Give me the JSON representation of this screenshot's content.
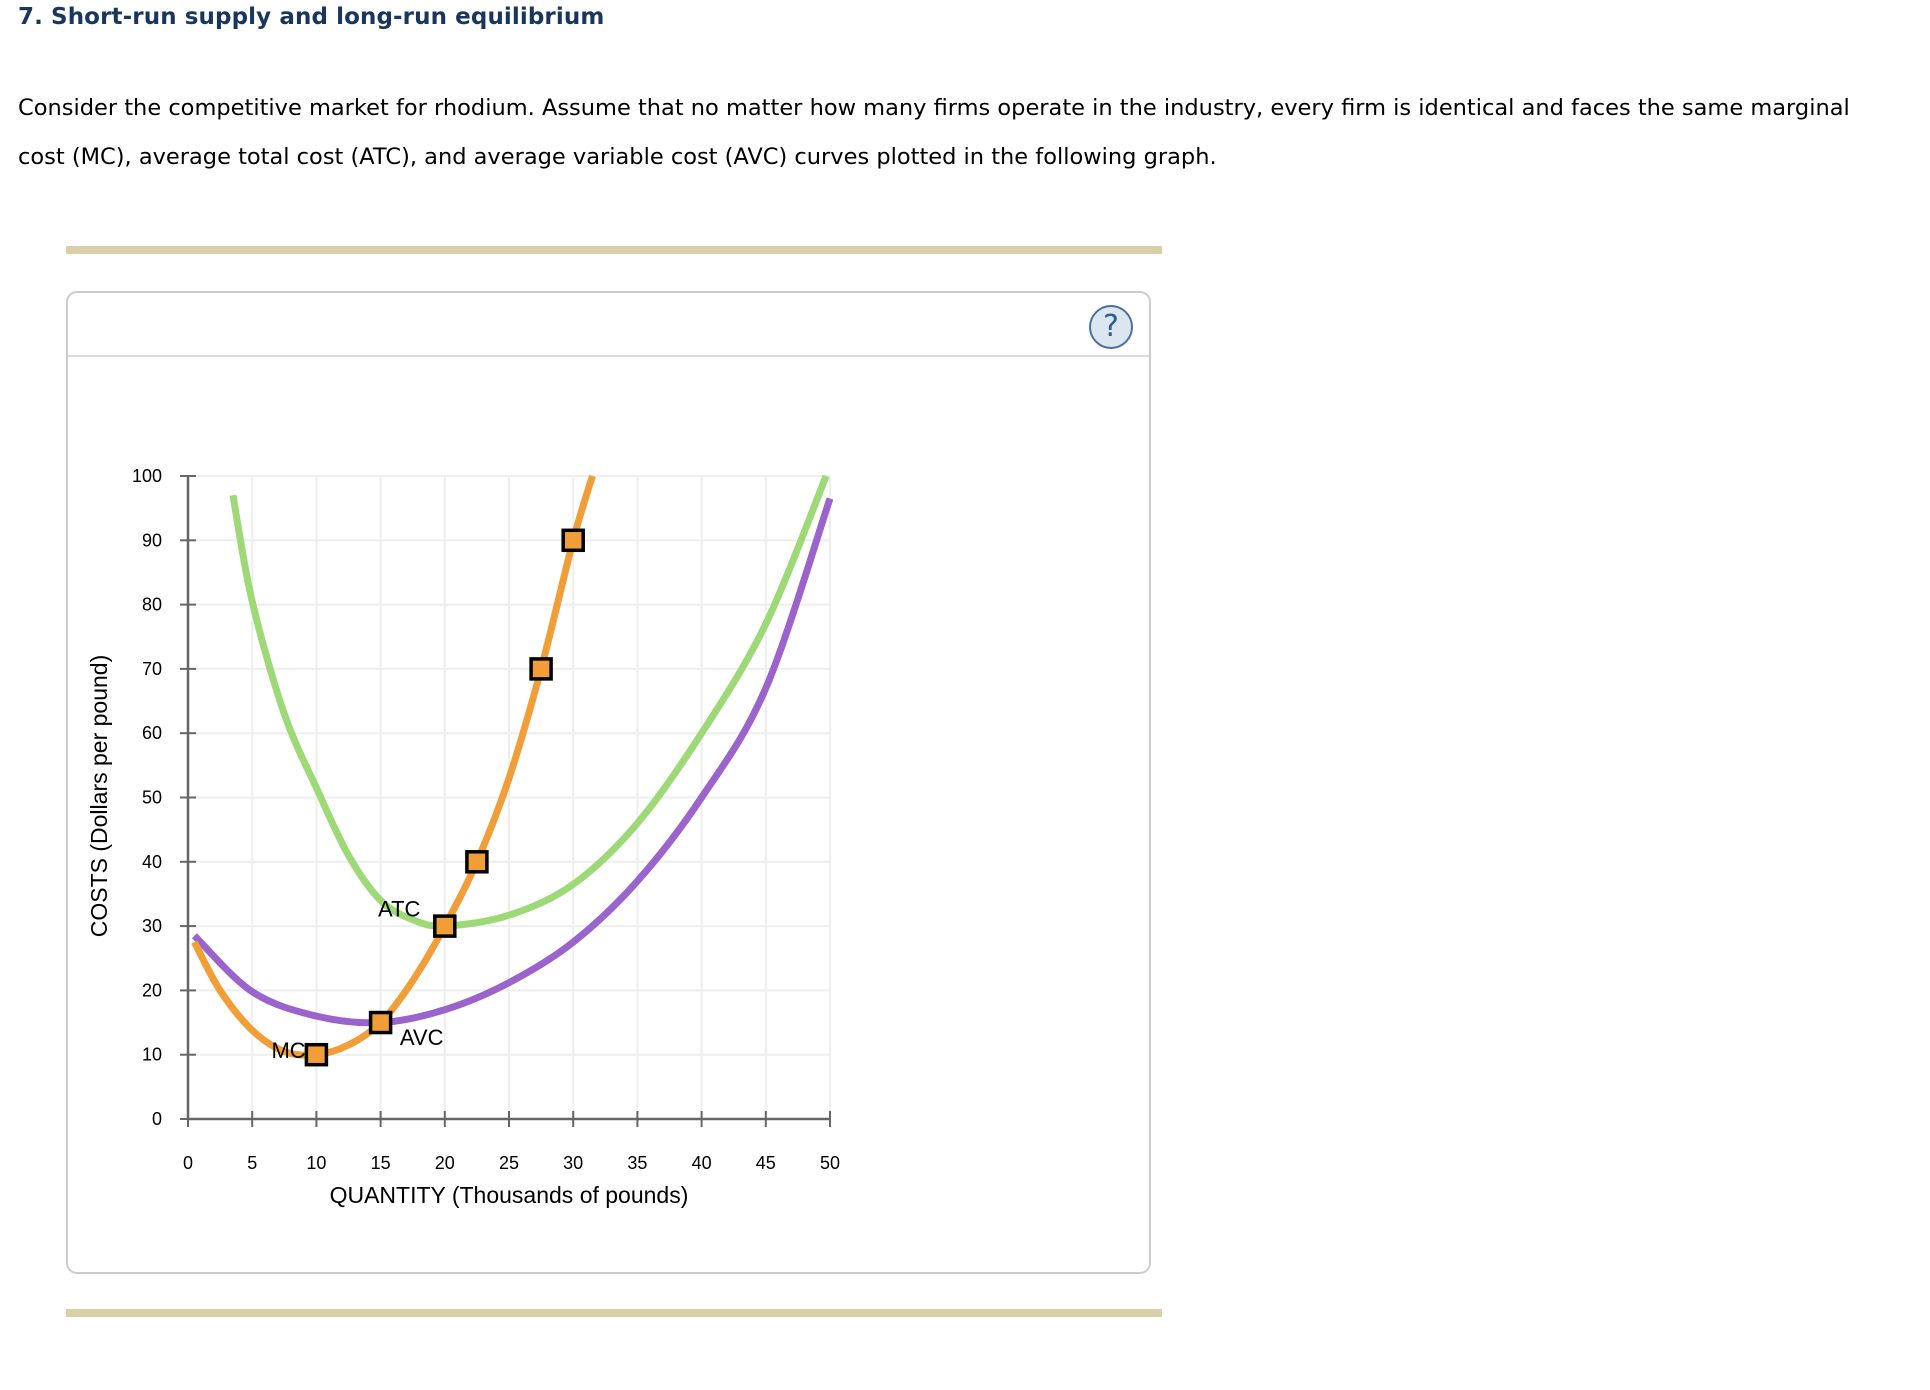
{
  "question": {
    "title": "7. Short-run supply and long-run equilibrium",
    "intro": "Consider the competitive market for rhodium. Assume that no matter how many firms operate in the industry, every firm is identical and faces the same marginal cost (MC), average total cost (ATC), and average variable cost (AVC) curves plotted in the following graph."
  },
  "panel": {
    "help_icon": "question-mark-icon",
    "help_label": "?"
  },
  "colors": {
    "title": "#1b365d",
    "mc": "#f29e38",
    "atc": "#9dd977",
    "avc": "#9b63cc",
    "grid": "#eeeeee",
    "axis": "#666666",
    "divider_bar": "#d9cfa9"
  },
  "chart_data": {
    "type": "line",
    "title": "",
    "xlabel": "QUANTITY (Thousands of pounds)",
    "ylabel": "COSTS (Dollars per pound)",
    "xlim": [
      0,
      50
    ],
    "ylim": [
      0,
      100
    ],
    "x_ticks": [
      0,
      5,
      10,
      15,
      20,
      25,
      30,
      35,
      40,
      45,
      50
    ],
    "y_ticks": [
      0,
      10,
      20,
      30,
      40,
      50,
      60,
      70,
      80,
      90,
      100
    ],
    "grid": true,
    "legend": "inline labels",
    "series": [
      {
        "name": "MC",
        "label": "MC",
        "color": "#f29e38",
        "points": [
          [
            0.5,
            27.5
          ],
          [
            2.5,
            20
          ],
          [
            5,
            13.8
          ],
          [
            7.5,
            10.5
          ],
          [
            10,
            10
          ],
          [
            12.5,
            11.5
          ],
          [
            15,
            15
          ],
          [
            17.5,
            21.5
          ],
          [
            20,
            30
          ],
          [
            22.5,
            40
          ],
          [
            25,
            53
          ],
          [
            27.5,
            70
          ],
          [
            30,
            90
          ],
          [
            31.5,
            100
          ]
        ],
        "markers": [
          [
            10,
            10
          ],
          [
            15,
            15
          ],
          [
            20,
            30
          ],
          [
            22.5,
            40
          ],
          [
            27.5,
            70
          ],
          [
            30,
            90
          ]
        ],
        "label_pos": [
          6.5,
          9.5
        ]
      },
      {
        "name": "AVC",
        "label": "AVC",
        "color": "#9b63cc",
        "points": [
          [
            0.5,
            28.5
          ],
          [
            5,
            19.8
          ],
          [
            10,
            16
          ],
          [
            15,
            15
          ],
          [
            20,
            17
          ],
          [
            25,
            21.2
          ],
          [
            30,
            27.5
          ],
          [
            35,
            37
          ],
          [
            40,
            50
          ],
          [
            45,
            67
          ],
          [
            50,
            96.5
          ]
        ],
        "markers": [],
        "label_pos": [
          16.5,
          11.5
        ]
      },
      {
        "name": "ATC",
        "label": "ATC",
        "color": "#9dd977",
        "points": [
          [
            3.5,
            97
          ],
          [
            5,
            80.5
          ],
          [
            7.5,
            63
          ],
          [
            10,
            51.5
          ],
          [
            12.5,
            41
          ],
          [
            15,
            34
          ],
          [
            17.5,
            31
          ],
          [
            20,
            30
          ],
          [
            25,
            31.7
          ],
          [
            30,
            36.5
          ],
          [
            35,
            46
          ],
          [
            40,
            60
          ],
          [
            45,
            77
          ],
          [
            49.7,
            100
          ]
        ],
        "markers": [],
        "label_pos": [
          14.8,
          31.5
        ]
      }
    ]
  }
}
